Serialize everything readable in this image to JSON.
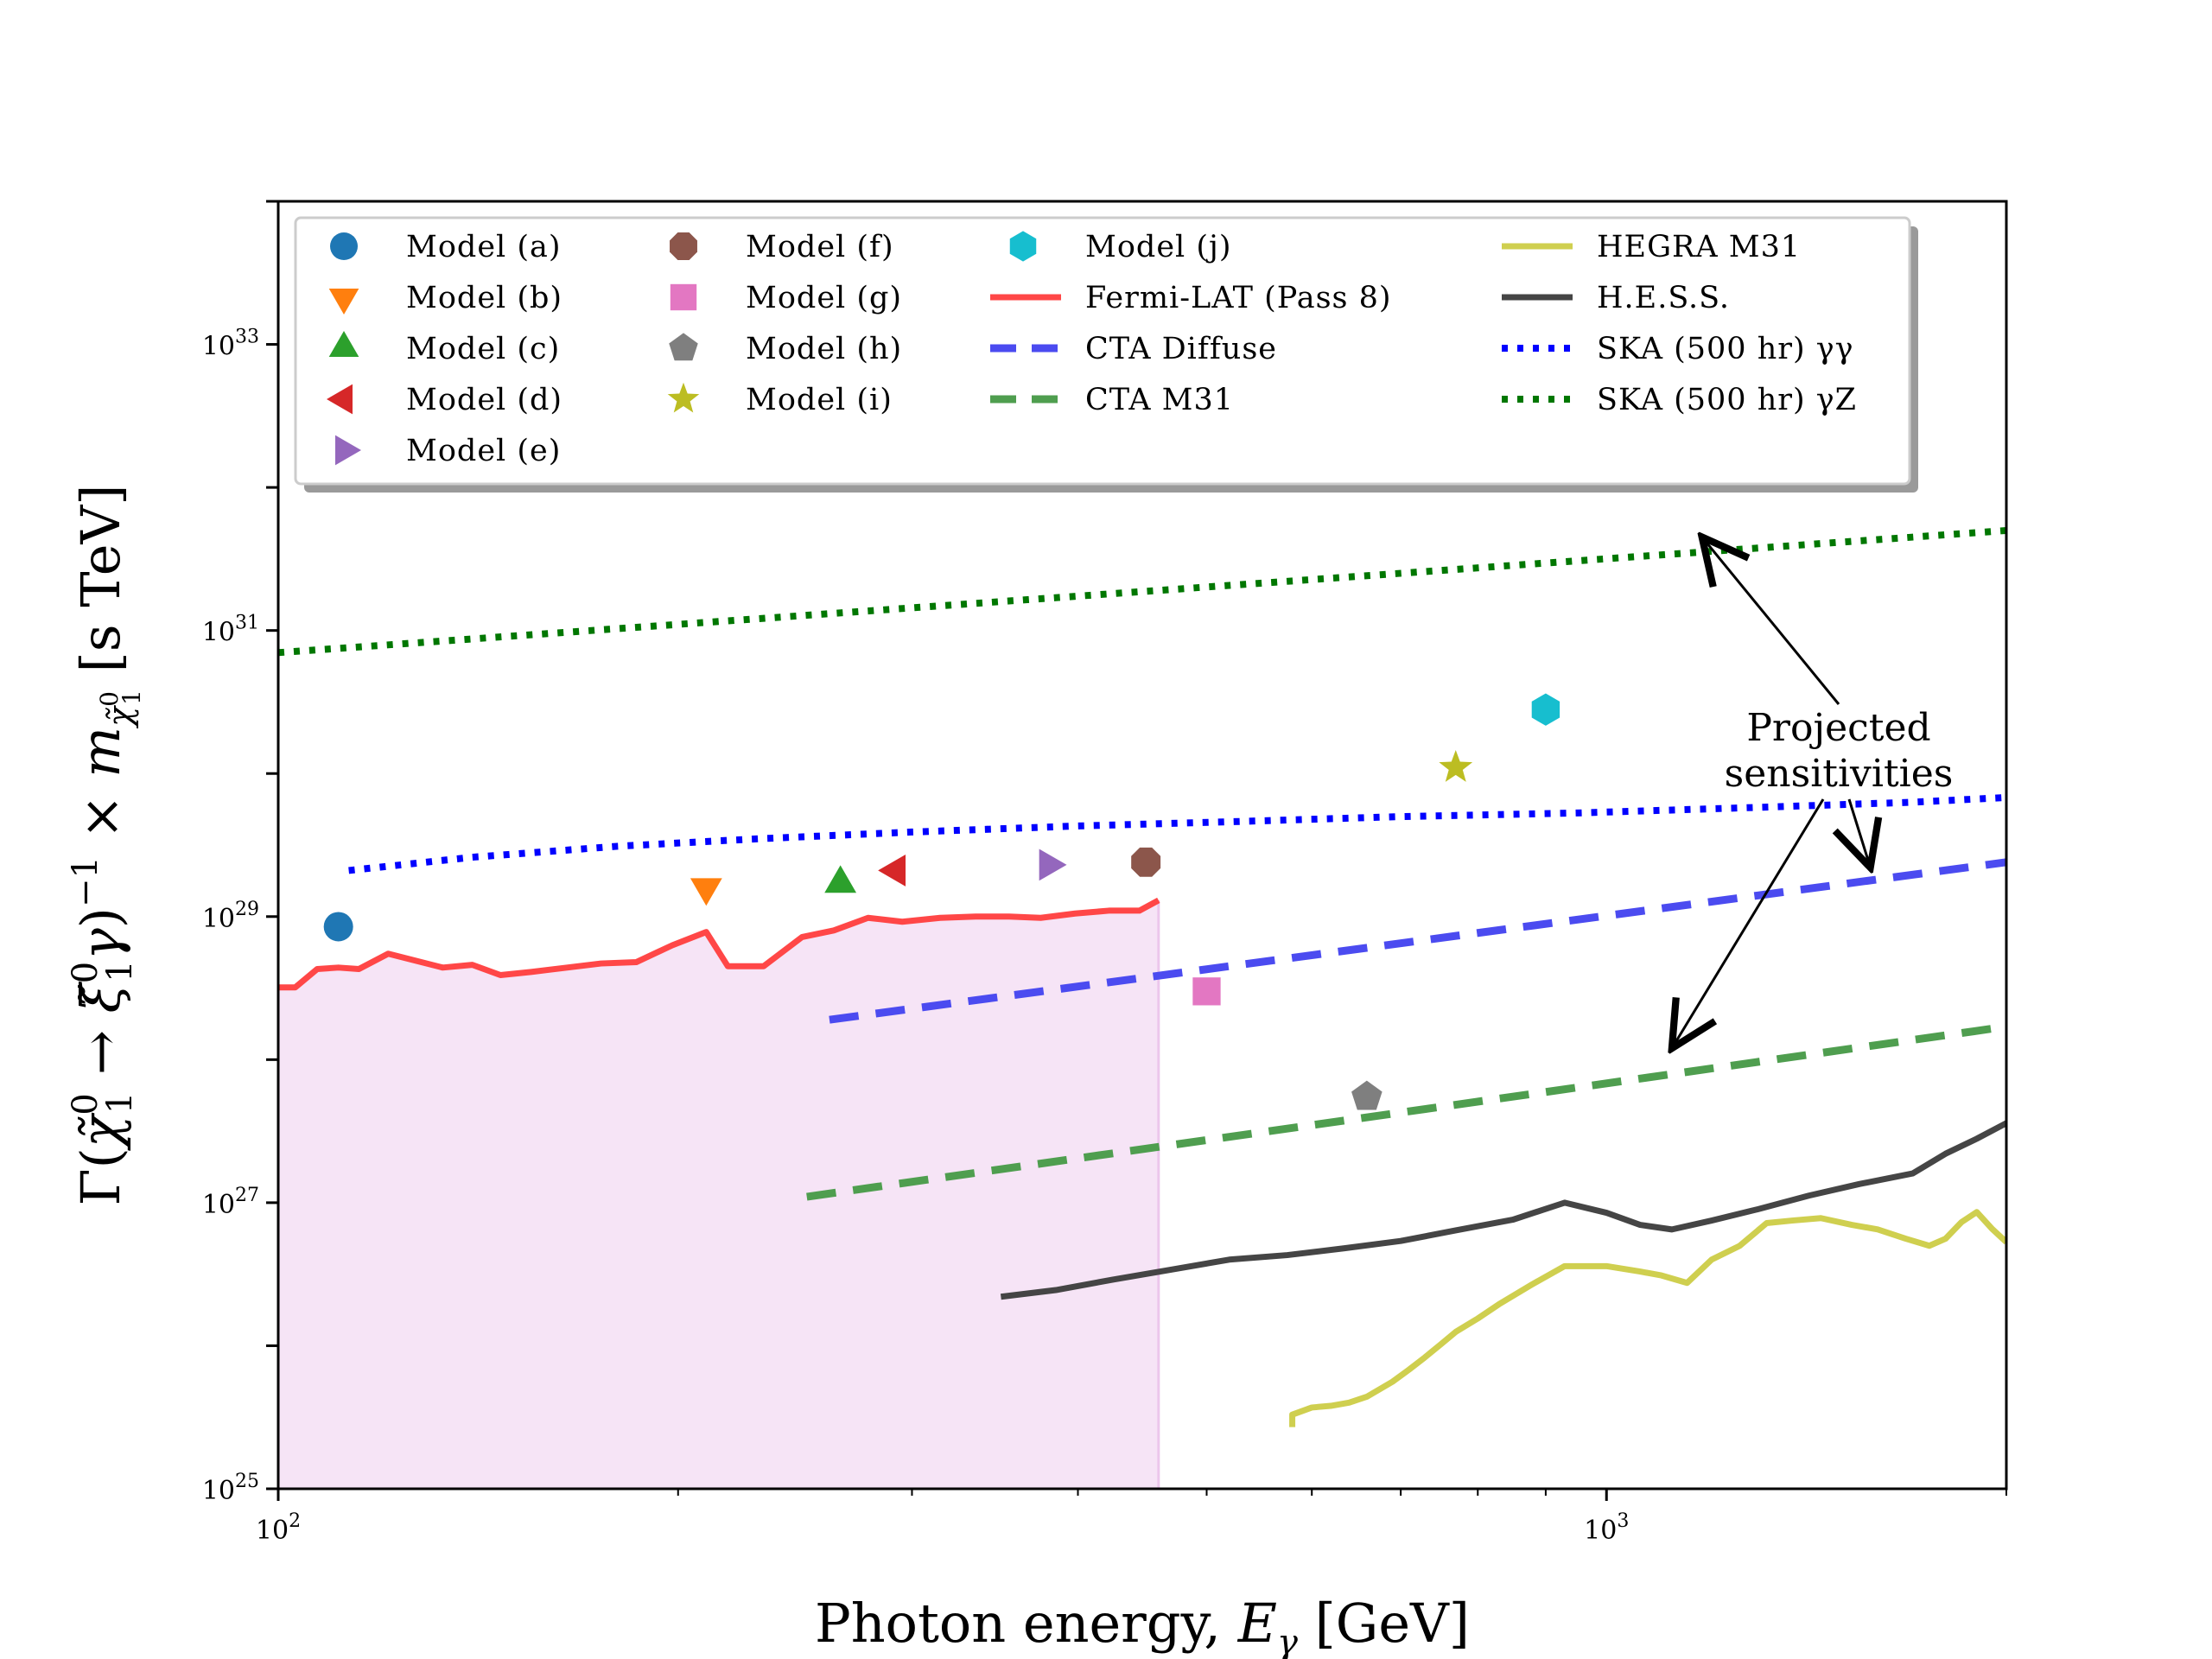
{
  "chart_data": {
    "type": "scatter+line",
    "xscale": "log",
    "yscale": "log",
    "xlim": [
      100,
      2000
    ],
    "ylim": [
      1e+25,
      1e+34
    ],
    "xlabel": "Photon energy,  E_γ [GeV]",
    "ylabel": "Γ(χ̃₁⁰ → ξ̃₁⁰γ)⁻¹ × m_χ̃₁⁰ [s TeV]",
    "x_tick_labels": [
      {
        "value": 100,
        "base": "10",
        "exp": "2"
      },
      {
        "value": 1000,
        "base": "10",
        "exp": "3"
      }
    ],
    "y_tick_labels": [
      {
        "value": 1e+25,
        "base": "10",
        "exp": "25"
      },
      {
        "value": 1e+27,
        "base": "10",
        "exp": "27"
      },
      {
        "value": 1e+29,
        "base": "10",
        "exp": "29"
      },
      {
        "value": 1e+31,
        "base": "10",
        "exp": "31"
      },
      {
        "value": 1e+33,
        "base": "10",
        "exp": "33"
      }
    ],
    "points": [
      {
        "name": "Model (a)",
        "x": 111,
        "y": 8.5e+28,
        "marker": "circle",
        "color": "#1f77b4"
      },
      {
        "name": "Model (b)",
        "x": 210,
        "y": 1.6e+29,
        "marker": "triangle-down",
        "color": "#ff7f0e"
      },
      {
        "name": "Model (c)",
        "x": 265,
        "y": 1.7e+29,
        "marker": "triangle-up",
        "color": "#2ca02c"
      },
      {
        "name": "Model (d)",
        "x": 292,
        "y": 2.1e+29,
        "marker": "triangle-left",
        "color": "#d62728"
      },
      {
        "name": "Model (e)",
        "x": 380,
        "y": 2.3e+29,
        "marker": "triangle-right",
        "color": "#9467bd"
      },
      {
        "name": "Model (f)",
        "x": 450,
        "y": 2.4e+29,
        "marker": "octagon",
        "color": "#8c564b"
      },
      {
        "name": "Model (g)",
        "x": 500,
        "y": 3e+28,
        "marker": "square",
        "color": "#e377c2"
      },
      {
        "name": "Model (h)",
        "x": 660,
        "y": 5.5e+27,
        "marker": "pentagon",
        "color": "#7f7f7f"
      },
      {
        "name": "Model (i)",
        "x": 770,
        "y": 1.1e+30,
        "marker": "star",
        "color": "#bcbd22"
      },
      {
        "name": "Model (j)",
        "x": 900,
        "y": 2.8e+30,
        "marker": "hexagon",
        "color": "#17becf"
      }
    ],
    "series": [
      {
        "name": "Fermi-LAT (Pass 8)",
        "color": "#ff4747",
        "style": "solid",
        "fill": "#f6e4f6",
        "x": [
          100,
          103,
          107,
          111,
          115,
          121,
          126,
          133,
          140,
          147,
          155,
          165,
          175,
          186,
          198,
          210,
          218,
          232,
          248,
          262,
          278,
          295,
          315,
          335,
          355,
          375,
          398,
          422,
          445,
          460
        ],
        "y": [
          3.2e+28,
          3.2e+28,
          4.3e+28,
          4.4e+28,
          4.3e+28,
          5.5e+28,
          5e+28,
          4.4e+28,
          4.6e+28,
          3.9e+28,
          4.1e+28,
          4.4e+28,
          4.7e+28,
          4.8e+28,
          6.3e+28,
          7.8e+28,
          4.5e+28,
          4.5e+28,
          7.2e+28,
          8e+28,
          9.8e+28,
          9.2e+28,
          9.8e+28,
          1e+29,
          1e+29,
          9.8e+28,
          1.05e+29,
          1.1e+29,
          1.1e+29,
          1.3e+29
        ]
      },
      {
        "name": "CTA Diffuse",
        "color": "#4b4bf0",
        "style": "dashed",
        "x": [
          260,
          2000
        ],
        "y": [
          1.9e+28,
          2.4e+29
        ]
      },
      {
        "name": "CTA M31",
        "color": "#4f9e4f",
        "style": "dashed",
        "x": [
          250,
          2000
        ],
        "y": [
          1.1e+27,
          1.7e+28
        ]
      },
      {
        "name": "HEGRA M31",
        "color": "#cfcf4f",
        "style": "solid",
        "x": [
          580,
          580,
          600,
          620,
          640,
          660,
          690,
          710,
          730,
          750,
          770,
          800,
          830,
          880,
          930,
          1000,
          1060,
          1100,
          1150,
          1200,
          1260,
          1320,
          1380,
          1450,
          1530,
          1600,
          1680,
          1750,
          1800,
          1850,
          1900,
          1950,
          2000
        ],
        "y": [
          2.7e+25,
          3.3e+25,
          3.7e+25,
          3.8e+25,
          4e+25,
          4.4e+25,
          5.6e+25,
          6.8e+25,
          8.3e+25,
          1.02e+26,
          1.25e+26,
          1.55e+26,
          1.95e+26,
          2.7e+26,
          3.6e+26,
          3.6e+26,
          3.3e+26,
          3.1e+26,
          2.75e+26,
          4e+26,
          5e+26,
          7.2e+26,
          7.5e+26,
          7.8e+26,
          7e+26,
          6.5e+26,
          5.6e+26,
          5e+26,
          5.6e+26,
          7.3e+26,
          8.6e+26,
          6.6e+26,
          5.3e+26
        ]
      },
      {
        "name": "H.E.S.S.",
        "color": "#454545",
        "style": "solid",
        "x": [
          350,
          385,
          425,
          470,
          520,
          575,
          635,
          700,
          770,
          850,
          930,
          1000,
          1060,
          1120,
          1200,
          1300,
          1420,
          1550,
          1700,
          1800,
          1900,
          2000
        ],
        "y": [
          2.2e+26,
          2.45e+26,
          2.9e+26,
          3.4e+26,
          4e+26,
          4.3e+26,
          4.8e+26,
          5.4e+26,
          6.4e+26,
          7.6e+26,
          1e+27,
          8.5e+26,
          7e+26,
          6.5e+26,
          7.5e+26,
          9e+26,
          1.12e+27,
          1.35e+27,
          1.6e+27,
          2.2e+27,
          2.8e+27,
          3.6e+27
        ]
      },
      {
        "name": "SKA (500 hr) γγ",
        "color": "#0000ff",
        "style": "dotted",
        "x": [
          113,
          140,
          180,
          230,
          300,
          400,
          520,
          700,
          950,
          1300,
          1700,
          2000
        ],
        "y": [
          2.1e+29,
          2.6e+29,
          3.1e+29,
          3.5e+29,
          3.9e+29,
          4.3e+29,
          4.6e+29,
          5e+29,
          5.3e+29,
          5.8e+29,
          6.3e+29,
          6.8e+29
        ]
      },
      {
        "name": "SKA (500 hr) γZ",
        "color": "#007700",
        "style": "dotted",
        "x": [
          100,
          2000
        ],
        "y": [
          7e+30,
          5e+31
        ]
      }
    ],
    "legend": [
      [
        "Model (a)",
        "Model (b)",
        "Model (c)",
        "Model (d)",
        "Model (e)"
      ],
      [
        "Model (f)",
        "Model (g)",
        "Model (h)",
        "Model (i)"
      ],
      [
        "Model (j)",
        "Fermi-LAT (Pass 8)",
        "CTA Diffuse",
        "CTA M31"
      ],
      [
        "HEGRA M31",
        "H.E.S.S.",
        "SKA (500 hr) γγ",
        "SKA (500 hr) γZ"
      ]
    ],
    "legend_placement": "top",
    "annotation": {
      "lines": [
        "Projected",
        "sensitivities"
      ],
      "arrow_targets": [
        {
          "x": 1180,
          "y": 4.5e+31
        },
        {
          "x": 1580,
          "y": 2.2e+29
        },
        {
          "x": 1120,
          "y": 1.2e+28
        }
      ]
    }
  }
}
